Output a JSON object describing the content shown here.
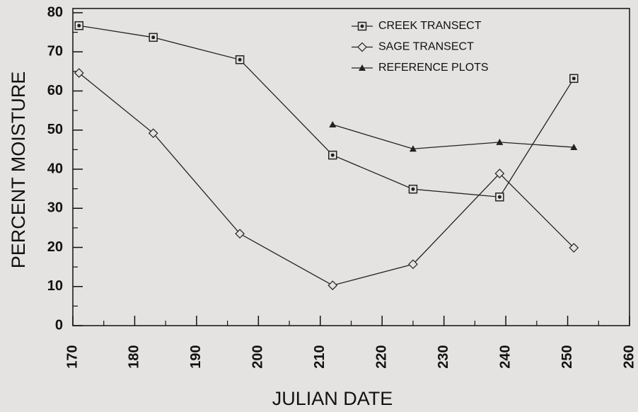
{
  "chart_data": {
    "type": "line",
    "xlabel": "JULIAN DATE",
    "ylabel": "PERCENT  MOISTURE",
    "x": [
      171,
      183,
      197,
      212,
      225,
      239,
      251
    ],
    "series": [
      {
        "name": "CREEK TRANSECT",
        "color": "#222222",
        "marker": "square-dot",
        "values": [
          76.7,
          73.7,
          68,
          43.6,
          34.9,
          32.9,
          63.2
        ]
      },
      {
        "name": "SAGE TRANSECT",
        "color": "#222222",
        "marker": "diamond",
        "values": [
          64.6,
          49.2,
          23.5,
          10.3,
          15.7,
          38.9,
          19.9
        ]
      },
      {
        "name": "REFERENCE PLOTS",
        "color": "#222222",
        "marker": "triangle",
        "values": [
          null,
          null,
          null,
          51.4,
          45.2,
          46.9,
          45.6
        ]
      }
    ],
    "xlim": [
      170,
      260
    ],
    "xticks": [
      170,
      180,
      190,
      200,
      210,
      220,
      230,
      240,
      250,
      260
    ],
    "ylim": [
      0,
      80
    ],
    "yticks": [
      0,
      10,
      20,
      30,
      40,
      50,
      60,
      70,
      80
    ],
    "legend": "upper center",
    "grid": false
  }
}
